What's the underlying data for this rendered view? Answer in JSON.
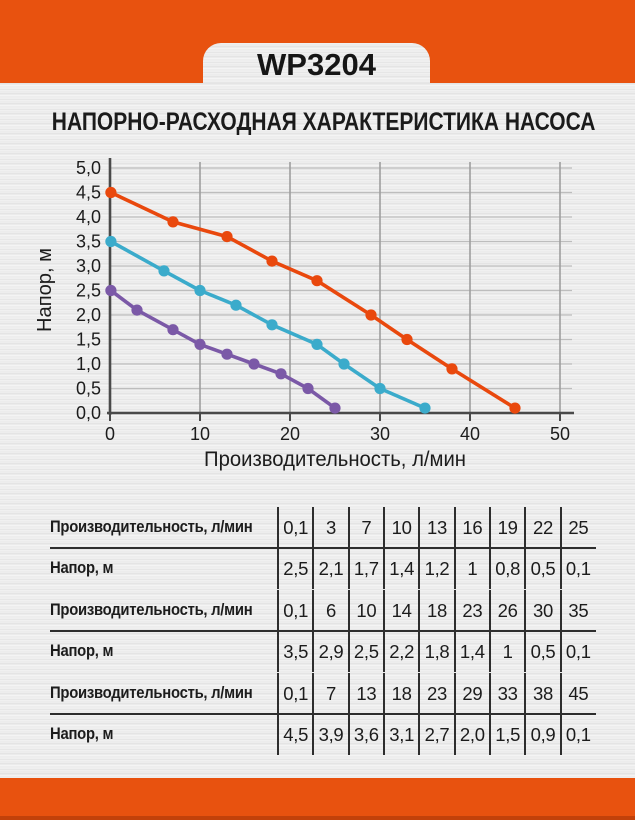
{
  "header": {
    "model": "WP3204"
  },
  "titles": {
    "main": "НАПОРНО-РАСХОДНАЯ ХАРАКТЕРИСТИКА НАСОСА"
  },
  "colors": {
    "accent_orange": "#E8520F",
    "accent_orange_dark": "#C2410A",
    "series_orange": "#E9480D",
    "series_teal": "#3BABCB",
    "series_purple": "#7B59A7",
    "grid_vertical": "#9E9E9E",
    "grid_horizontal": "#BDBDBD",
    "axis": "#4A4A4A"
  },
  "chart_data": {
    "type": "line",
    "title": "",
    "xlabel": "Производительность, л/мин",
    "ylabel": "Напор, м",
    "xlim": [
      0,
      50
    ],
    "ylim": [
      0,
      5
    ],
    "xticks": [
      0,
      10,
      20,
      30,
      40,
      50
    ],
    "xtick_labels": [
      "0",
      "10",
      "20",
      "30",
      "40",
      "50"
    ],
    "ytick_labels": [
      "0,0",
      "0,5",
      "1,0",
      "1,5",
      "2,0",
      "2,5",
      "3,0",
      "3,5",
      "4,0",
      "4,5",
      "5,0"
    ],
    "grid": true,
    "legend_position": "none",
    "series": [
      {
        "name": "curve-low",
        "color": "#7B59A7",
        "points": [
          [
            0.1,
            2.5
          ],
          [
            3,
            2.1
          ],
          [
            7,
            1.7
          ],
          [
            10,
            1.4
          ],
          [
            13,
            1.2
          ],
          [
            16,
            1.0
          ],
          [
            19,
            0.8
          ],
          [
            22,
            0.5
          ],
          [
            25,
            0.1
          ]
        ]
      },
      {
        "name": "curve-mid",
        "color": "#3BABCB",
        "points": [
          [
            0.1,
            3.5
          ],
          [
            6,
            2.9
          ],
          [
            10,
            2.5
          ],
          [
            14,
            2.2
          ],
          [
            18,
            1.8
          ],
          [
            23,
            1.4
          ],
          [
            26,
            1.0
          ],
          [
            30,
            0.5
          ],
          [
            35,
            0.1
          ]
        ]
      },
      {
        "name": "curve-high",
        "color": "#E9480D",
        "points": [
          [
            0.1,
            4.5
          ],
          [
            7,
            3.9
          ],
          [
            13,
            3.6
          ],
          [
            18,
            3.1
          ],
          [
            23,
            2.7
          ],
          [
            29,
            2.0
          ],
          [
            33,
            1.5
          ],
          [
            38,
            0.9
          ],
          [
            45,
            0.1
          ]
        ]
      }
    ]
  },
  "tables": [
    {
      "rows": [
        {
          "label": "Производительность, л/мин",
          "values": [
            "0,1",
            "3",
            "7",
            "10",
            "13",
            "16",
            "19",
            "22",
            "25"
          ]
        },
        {
          "label": "Напор, м",
          "values": [
            "2,5",
            "2,1",
            "1,7",
            "1,4",
            "1,2",
            "1",
            "0,8",
            "0,5",
            "0,1"
          ]
        }
      ]
    },
    {
      "rows": [
        {
          "label": "Производительность, л/мин",
          "values": [
            "0,1",
            "6",
            "10",
            "14",
            "18",
            "23",
            "26",
            "30",
            "35"
          ]
        },
        {
          "label": "Напор, м",
          "values": [
            "3,5",
            "2,9",
            "2,5",
            "2,2",
            "1,8",
            "1,4",
            "1",
            "0,5",
            "0,1"
          ]
        }
      ]
    },
    {
      "rows": [
        {
          "label": "Производительность, л/мин",
          "values": [
            "0,1",
            "7",
            "13",
            "18",
            "23",
            "29",
            "33",
            "38",
            "45"
          ]
        },
        {
          "label": "Напор, м",
          "values": [
            "4,5",
            "3,9",
            "3,6",
            "3,1",
            "2,7",
            "2,0",
            "1,5",
            "0,9",
            "0,1"
          ]
        }
      ]
    }
  ]
}
